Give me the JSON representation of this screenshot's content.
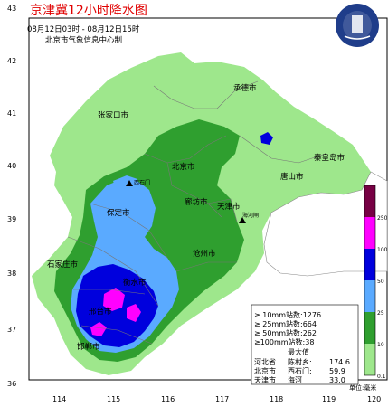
{
  "title": "京津冀12小时降水图",
  "time_range": "08月12日03时 - 08月12日15时",
  "producer": "北京市气象信息中心制",
  "logo_text": "BEIJING METEOROLOGICAL SERVICE 北京市气象局",
  "y_ticks": [
    "43",
    "42",
    "41",
    "40",
    "39",
    "38",
    "37",
    "36"
  ],
  "x_ticks": [
    "114",
    "115",
    "116",
    "117",
    "118",
    "119",
    "120"
  ],
  "cities": [
    "承德市",
    "张家口市",
    "秦皇岛市",
    "北京市",
    "唐山市",
    "廊坊市",
    "天津市",
    "保定市",
    "沧州市",
    "石家庄市",
    "衡水市",
    "邢台市",
    "邯郸市"
  ],
  "stations": [
    "西石门",
    "海河闸"
  ],
  "legend": {
    "labels": [
      "250",
      "100",
      "50",
      "25",
      "10",
      "0.1"
    ],
    "colors": [
      "#770044",
      "#ff00ff",
      "#0000dd",
      "#5aaaff",
      "#2f9f2f",
      "#9ee78c"
    ],
    "unit": "单位:毫米"
  },
  "stats": {
    "lines": [
      "≥ 10mm站数:1276",
      "≥ 25mm站数:664",
      "≥ 50mm站数:262",
      "≥100mm站数:38"
    ],
    "max_title": "最大值",
    "max_rows": [
      {
        "region": "河北省",
        "site": "陈村乡:",
        "value": "174.6"
      },
      {
        "region": "北京市",
        "site": "西石门:",
        "value": "59.9"
      },
      {
        "region": "天津市",
        "site": "海河",
        "value": "33.0"
      }
    ]
  },
  "colors": {
    "title": "#e00000",
    "land": "#ffffff",
    "frame": "#000000"
  }
}
